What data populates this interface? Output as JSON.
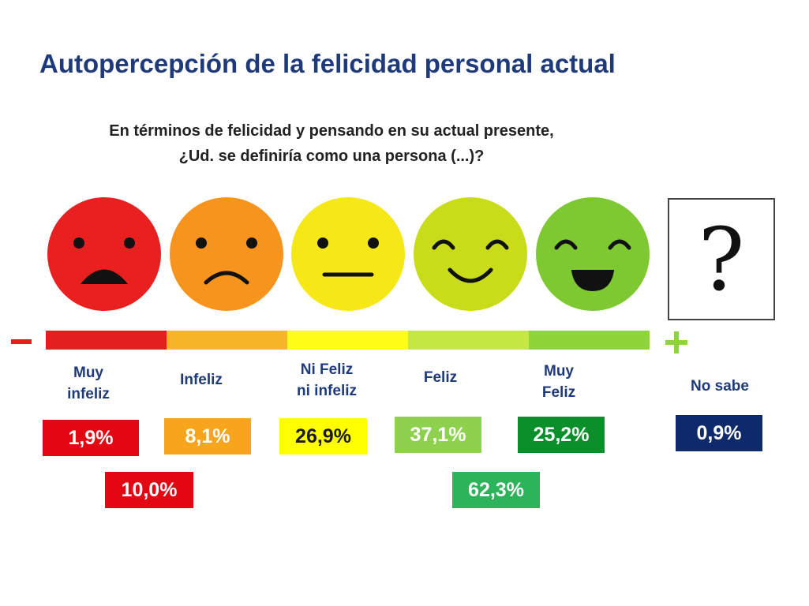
{
  "title": "Autopercepción de la felicidad personal actual",
  "question": {
    "line1": "En términos de felicidad y pensando en su actual presente,",
    "line2": "¿Ud. se definiría como una persona (...)?"
  },
  "scale": {
    "minus_symbol": "−",
    "plus_symbol": "+",
    "colors": [
      "#e21e1e",
      "#f7b52a",
      "#ffff1a",
      "#c3e844",
      "#8ed53a"
    ]
  },
  "unknown_symbol": "?",
  "chart_data": {
    "type": "bar",
    "title": "Autopercepción de la felicidad personal actual",
    "subtitle": "En términos de felicidad y pensando en su actual presente, ¿Ud. se definiría como una persona (...)?",
    "unit": "%",
    "categories": [
      {
        "id": "muy_infeliz",
        "line1": "Muy",
        "line2": "infeliz",
        "value": 1.9,
        "label": "1,9%",
        "color": "#e30613",
        "text_color": "#ffffff",
        "face_color": "#e82020",
        "face": "very-sad-face-icon"
      },
      {
        "id": "infeliz",
        "line1": "Infeliz",
        "line2": "",
        "value": 8.1,
        "label": "8,1%",
        "color": "#f6a51d",
        "text_color": "#ffffff",
        "face_color": "#f7941d",
        "face": "sad-face-icon"
      },
      {
        "id": "ni_feliz",
        "line1": "Ni Feliz",
        "line2": "ni infeliz",
        "value": 26.9,
        "label": "26,9%",
        "color": "#ffff00",
        "text_color": "#1a1a1a",
        "face_color": "#f6e716",
        "face": "neutral-face-icon"
      },
      {
        "id": "feliz",
        "line1": "Feliz",
        "line2": "",
        "value": 37.1,
        "label": "37,1%",
        "color": "#8dd14e",
        "text_color": "#ffffff",
        "face_color": "#c8dc1a",
        "face": "happy-face-icon"
      },
      {
        "id": "muy_feliz",
        "line1": "Muy",
        "line2": "Feliz",
        "value": 25.2,
        "label": "25,2%",
        "color": "#0a8f2a",
        "text_color": "#ffffff",
        "face_color": "#7ec832",
        "face": "very-happy-face-icon"
      },
      {
        "id": "no_sabe",
        "line1": "No sabe",
        "line2": "",
        "value": 0.9,
        "label": "0,9%",
        "color": "#0f2a6b",
        "text_color": "#ffffff"
      }
    ],
    "totals": [
      {
        "id": "infeliz_total",
        "value": 10.0,
        "label": "10,0%",
        "color": "#e30613",
        "includes": [
          "muy_infeliz",
          "infeliz"
        ]
      },
      {
        "id": "feliz_total",
        "value": 62.3,
        "label": "62,3%",
        "color": "#2db35a",
        "includes": [
          "feliz",
          "muy_feliz"
        ]
      }
    ]
  }
}
